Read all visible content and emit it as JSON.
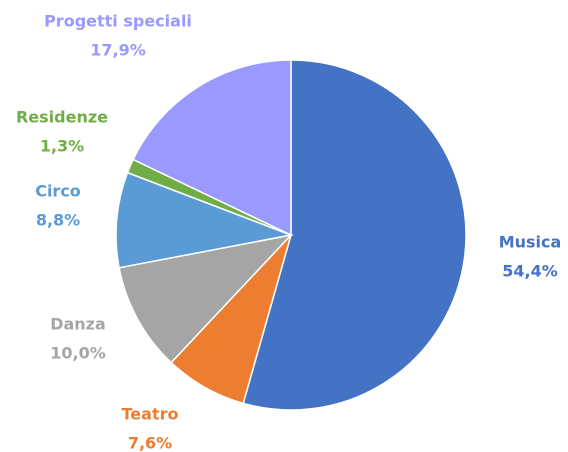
{
  "chart_data": {
    "type": "pie",
    "categories": [
      "Musica",
      "Teatro",
      "Danza",
      "Circo",
      "Residenze",
      "Progetti speciali"
    ],
    "values": [
      54.4,
      7.6,
      10.0,
      8.8,
      1.3,
      17.9
    ],
    "value_labels": [
      "54,4%",
      "7,6%",
      "10,0%",
      "8,8%",
      "1,3%",
      "17,9%"
    ],
    "colors": [
      "#4472c4",
      "#ed7d31",
      "#a5a5a5",
      "#5b9bd5",
      "#70ad47",
      "#9999ff"
    ]
  }
}
